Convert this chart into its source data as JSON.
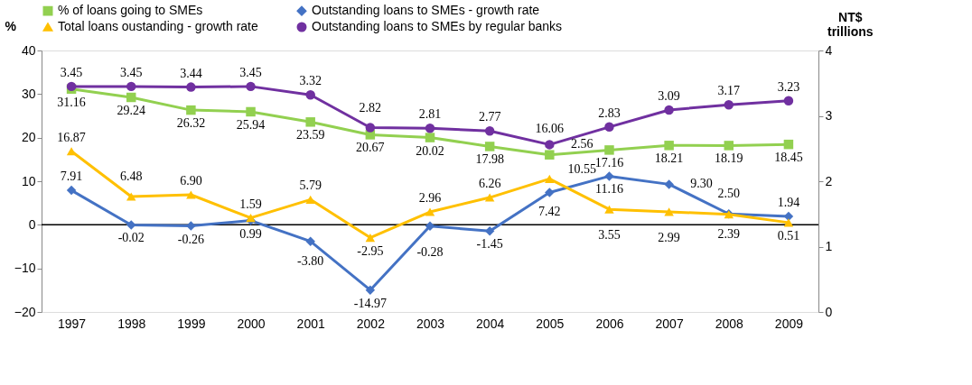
{
  "chart_data": {
    "type": "line",
    "ylabel": "%",
    "y2label": "NT$ trillions",
    "categories": [
      "1997",
      "1998",
      "1999",
      "2000",
      "2001",
      "2002",
      "2003",
      "2004",
      "2005",
      "2006",
      "2007",
      "2008",
      "2009"
    ],
    "series": [
      {
        "name": "% of loans going to SMEs",
        "color": "#92d050",
        "marker": "square",
        "values": [
          31.16,
          29.24,
          26.32,
          25.94,
          23.59,
          20.67,
          20.02,
          17.98,
          16.06,
          17.16,
          18.21,
          18.19,
          18.45
        ],
        "value_labels": [
          "31.16",
          "29.24",
          "26.32",
          "25.94",
          "23.59",
          "20.67",
          "20.02",
          "17.98",
          "16.06",
          "17.16",
          "18.21",
          "18.19",
          "18.45"
        ]
      },
      {
        "name": "Outstanding loans to SMEs - growth rate",
        "color": "#4472c4",
        "marker": "diamond",
        "values": [
          7.91,
          -0.02,
          -0.26,
          0.99,
          -3.8,
          -14.97,
          -0.28,
          -1.45,
          7.42,
          11.16,
          9.3,
          2.5,
          1.94
        ],
        "value_labels": [
          "7.91",
          "-0.02",
          "-0.26",
          "0.99",
          "-3.80",
          "-14.97",
          "-0.28",
          "-1.45",
          "7.42",
          "11.16",
          "9.30",
          "2.50",
          "1.94"
        ]
      },
      {
        "name": "Total loans oustanding - growth rate",
        "color": "#ffc000",
        "marker": "triangle",
        "values": [
          16.87,
          6.48,
          6.9,
          1.59,
          5.79,
          -2.95,
          2.96,
          6.26,
          10.55,
          3.55,
          2.99,
          2.39,
          0.51
        ],
        "value_labels": [
          "16.87",
          "6.48",
          "6.90",
          "1.59",
          "5.79",
          "-2.95",
          "2.96",
          "6.26",
          "10.55",
          "3.55",
          "2.99",
          "2.39",
          "0.51"
        ]
      },
      {
        "name": "Outstanding loans to SMEs by regular banks",
        "color": "#7030a0",
        "marker": "circle",
        "axis": "y2",
        "values": [
          3.45,
          3.45,
          3.44,
          3.45,
          3.32,
          2.82,
          2.81,
          2.77,
          2.56,
          2.83,
          3.09,
          3.17,
          3.23
        ],
        "value_labels": [
          "3.45",
          "3.45",
          "3.44",
          "3.45",
          "3.32",
          "2.82",
          "2.81",
          "2.77",
          "2.56",
          "2.83",
          "3.09",
          "3.17",
          "3.23"
        ]
      }
    ],
    "ylim": [
      -20,
      40
    ],
    "yticks": [
      -20,
      -10,
      0,
      10,
      20,
      30,
      40
    ],
    "y2lim": [
      0,
      4
    ],
    "y2ticks": [
      0,
      1,
      2,
      3,
      4
    ],
    "ref_lines": [
      {
        "axis": "y",
        "value": 0
      }
    ],
    "grid": false,
    "legend": "top"
  }
}
